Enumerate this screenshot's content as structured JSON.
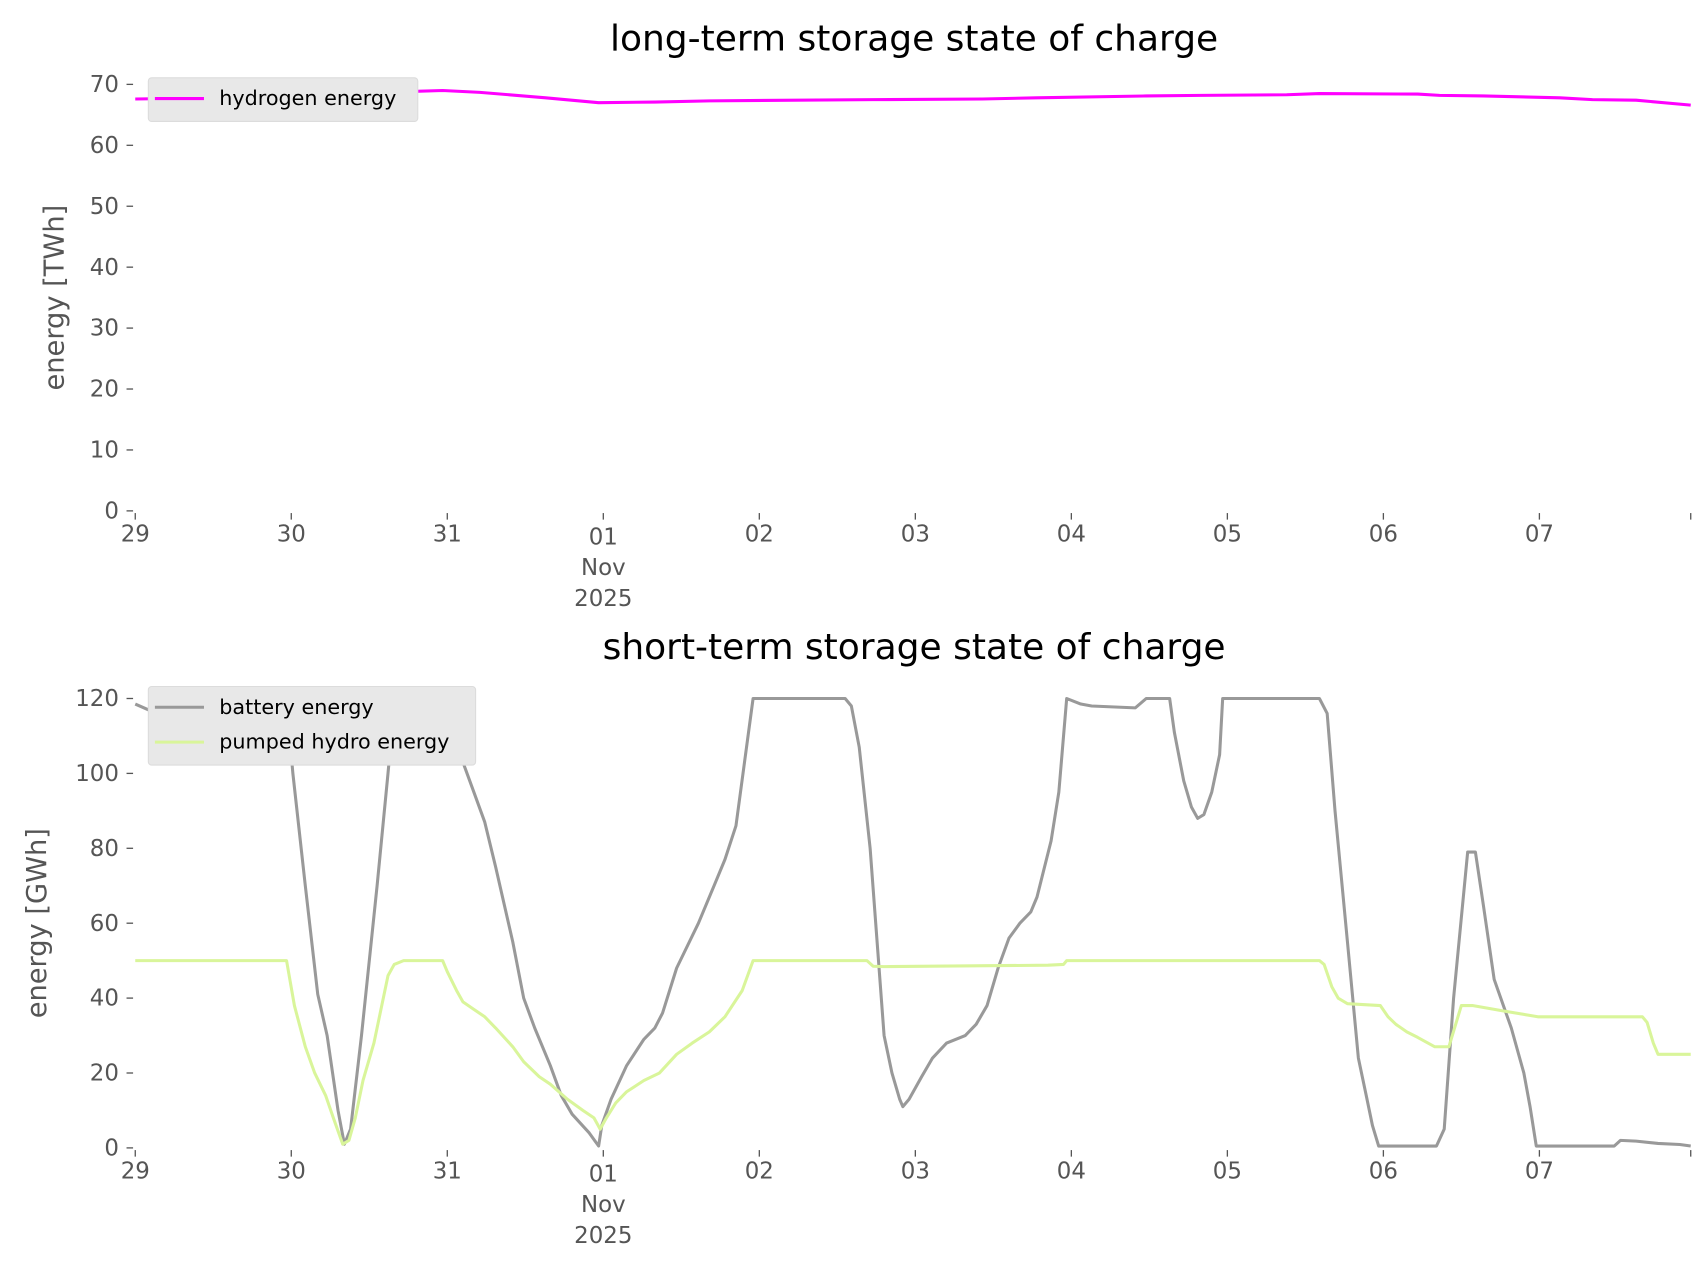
{
  "chart_data": [
    {
      "type": "line",
      "title": "long-term storage state of charge",
      "xlabel": "",
      "ylabel": "energy [TWh]",
      "x_unit": "days since 29 Oct 2025 00:00",
      "xlim": [
        0,
        9.97
      ],
      "ylim": [
        0,
        70
      ],
      "yticks": [
        0,
        10,
        20,
        30,
        40,
        50,
        60,
        70
      ],
      "xticks": [
        {
          "value": 0,
          "label": "29"
        },
        {
          "value": 1,
          "label": "30"
        },
        {
          "value": 2,
          "label": "31"
        },
        {
          "value": 3,
          "label": "01",
          "sub1": "Nov",
          "sub2": "2025"
        },
        {
          "value": 4,
          "label": "02"
        },
        {
          "value": 5,
          "label": "03"
        },
        {
          "value": 6,
          "label": "04"
        },
        {
          "value": 7,
          "label": "05"
        },
        {
          "value": 8,
          "label": "06"
        },
        {
          "value": 9,
          "label": "07"
        },
        {
          "value": 9.97,
          "label": ""
        }
      ],
      "grid": false,
      "legend_position": "top-left",
      "series": [
        {
          "name": "hydrogen energy",
          "color": "#ff00ff",
          "x": [
            0,
            0.53,
            1.23,
            1.72,
            1.97,
            2.21,
            2.63,
            2.97,
            3.33,
            3.68,
            4.73,
            5.43,
            5.78,
            6.48,
            6.83,
            7.38,
            7.59,
            8.22,
            8.36,
            8.64,
            9.13,
            9.34,
            9.62,
            9.97
          ],
          "y": [
            67.6,
            67.8,
            68.3,
            68.8,
            69.0,
            68.7,
            67.8,
            67.0,
            67.1,
            67.3,
            67.5,
            67.6,
            67.8,
            68.1,
            68.2,
            68.3,
            68.5,
            68.4,
            68.2,
            68.1,
            67.8,
            67.5,
            67.4,
            66.6
          ]
        }
      ]
    },
    {
      "type": "line",
      "title": "short-term storage state of charge",
      "xlabel": "",
      "ylabel": "energy [GWh]",
      "x_unit": "days since 29 Oct 2025 00:00",
      "xlim": [
        0,
        9.97
      ],
      "ylim": [
        0,
        120
      ],
      "yticks": [
        0,
        20,
        40,
        60,
        80,
        100,
        120
      ],
      "xticks": [
        {
          "value": 0,
          "label": "29"
        },
        {
          "value": 1,
          "label": "30"
        },
        {
          "value": 2,
          "label": "31"
        },
        {
          "value": 3,
          "label": "01",
          "sub1": "Nov",
          "sub2": "2025"
        },
        {
          "value": 4,
          "label": "02"
        },
        {
          "value": 5,
          "label": "03"
        },
        {
          "value": 6,
          "label": "04"
        },
        {
          "value": 7,
          "label": "05"
        },
        {
          "value": 8,
          "label": "06"
        },
        {
          "value": 9,
          "label": "07"
        },
        {
          "value": 9.97,
          "label": ""
        }
      ],
      "grid": false,
      "legend_position": "top-left",
      "series": [
        {
          "name": "battery energy",
          "color": "#999999",
          "x": [
            0,
            0.11,
            0.43,
            0.46,
            0.57,
            0.64,
            0.74,
            0.81,
            0.92,
            0.97,
            1.01,
            1.09,
            1.17,
            1.23,
            1.3,
            1.34,
            1.38,
            1.45,
            1.55,
            1.62,
            1.66,
            1.72,
            1.97,
            2.0,
            2.1,
            2.17,
            2.24,
            2.31,
            2.42,
            2.49,
            2.56,
            2.66,
            2.73,
            2.8,
            2.91,
            2.97,
            2.99,
            3.05,
            3.15,
            3.26,
            3.33,
            3.38,
            3.47,
            3.61,
            3.71,
            3.78,
            3.85,
            3.96,
            4.55,
            4.59,
            4.64,
            4.71,
            4.8,
            4.85,
            4.9,
            4.92,
            4.96,
            5.04,
            5.11,
            5.2,
            5.32,
            5.39,
            5.46,
            5.53,
            5.6,
            5.67,
            5.74,
            5.78,
            5.81,
            5.87,
            5.92,
            5.97,
            6.06,
            6.13,
            6.41,
            6.48,
            6.63,
            6.66,
            6.72,
            6.77,
            6.81,
            6.85,
            6.9,
            6.95,
            6.97,
            7.59,
            7.64,
            7.69,
            7.77,
            7.84,
            7.89,
            7.93,
            7.97,
            8.34,
            8.39,
            8.45,
            8.54,
            8.59,
            8.64,
            8.71,
            8.82,
            8.9,
            8.94,
            8.98,
            9.48,
            9.52,
            9.62,
            9.76,
            9.9,
            9.97
          ],
          "y": [
            118.5,
            116.5,
            115.5,
            119.5,
            120,
            120,
            114,
            114.5,
            118,
            119,
            100,
            70,
            41,
            30,
            10,
            1,
            5,
            30,
            70,
            100,
            118,
            120,
            120,
            112,
            103,
            95,
            87,
            75,
            55,
            40,
            32,
            22,
            14,
            9,
            4,
            0.5,
            6,
            13,
            22,
            29,
            32,
            36,
            48,
            60,
            70,
            77,
            86,
            120,
            120,
            118,
            107,
            80,
            30,
            20,
            13,
            11,
            13,
            19,
            24,
            28,
            30,
            33,
            38,
            48,
            56,
            60,
            63,
            67,
            72,
            82,
            95,
            120,
            118.5,
            118,
            117.5,
            120,
            120,
            111,
            98,
            91,
            88,
            89,
            95,
            105,
            120,
            120,
            116,
            90,
            55,
            24,
            14,
            6,
            0.5,
            0.5,
            5,
            40,
            79,
            79,
            65,
            45,
            32,
            20,
            11,
            0.5,
            0.5,
            2,
            1.8,
            1.2,
            0.9,
            0.5
          ]
        },
        {
          "name": "pumped hydro energy",
          "color": "#d9f59a",
          "x": [
            0,
            0.97,
            1.02,
            1.09,
            1.15,
            1.22,
            1.27,
            1.33,
            1.37,
            1.41,
            1.46,
            1.53,
            1.62,
            1.66,
            1.72,
            1.97,
            2.0,
            2.06,
            2.1,
            2.17,
            2.24,
            2.31,
            2.42,
            2.49,
            2.59,
            2.66,
            2.77,
            2.87,
            2.94,
            2.98,
            3.02,
            3.08,
            3.15,
            3.26,
            3.36,
            3.47,
            3.57,
            3.68,
            3.78,
            3.89,
            3.96,
            4.69,
            4.73,
            4.8,
            5.85,
            5.95,
            5.97,
            7.59,
            7.62,
            7.67,
            7.71,
            7.77,
            7.98,
            8.03,
            8.08,
            8.15,
            8.22,
            8.33,
            8.42,
            8.5,
            8.57,
            8.78,
            8.99,
            9.66,
            9.69,
            9.73,
            9.76,
            9.97
          ],
          "y": [
            50,
            50,
            38,
            27,
            20,
            14,
            8,
            1,
            2,
            8,
            18,
            28,
            46,
            49,
            50,
            50,
            47,
            42,
            39,
            37,
            35,
            32,
            27,
            23,
            19,
            17,
            13,
            10,
            8,
            5,
            8,
            12,
            15,
            18,
            20,
            25,
            28,
            31,
            35,
            42,
            50,
            50,
            48.5,
            48.4,
            48.8,
            49,
            50,
            50,
            49,
            43,
            40,
            38.5,
            38,
            35,
            33,
            31,
            29.5,
            27,
            27,
            38,
            38,
            36.5,
            35,
            35,
            33.5,
            28,
            25,
            25
          ]
        }
      ]
    }
  ]
}
